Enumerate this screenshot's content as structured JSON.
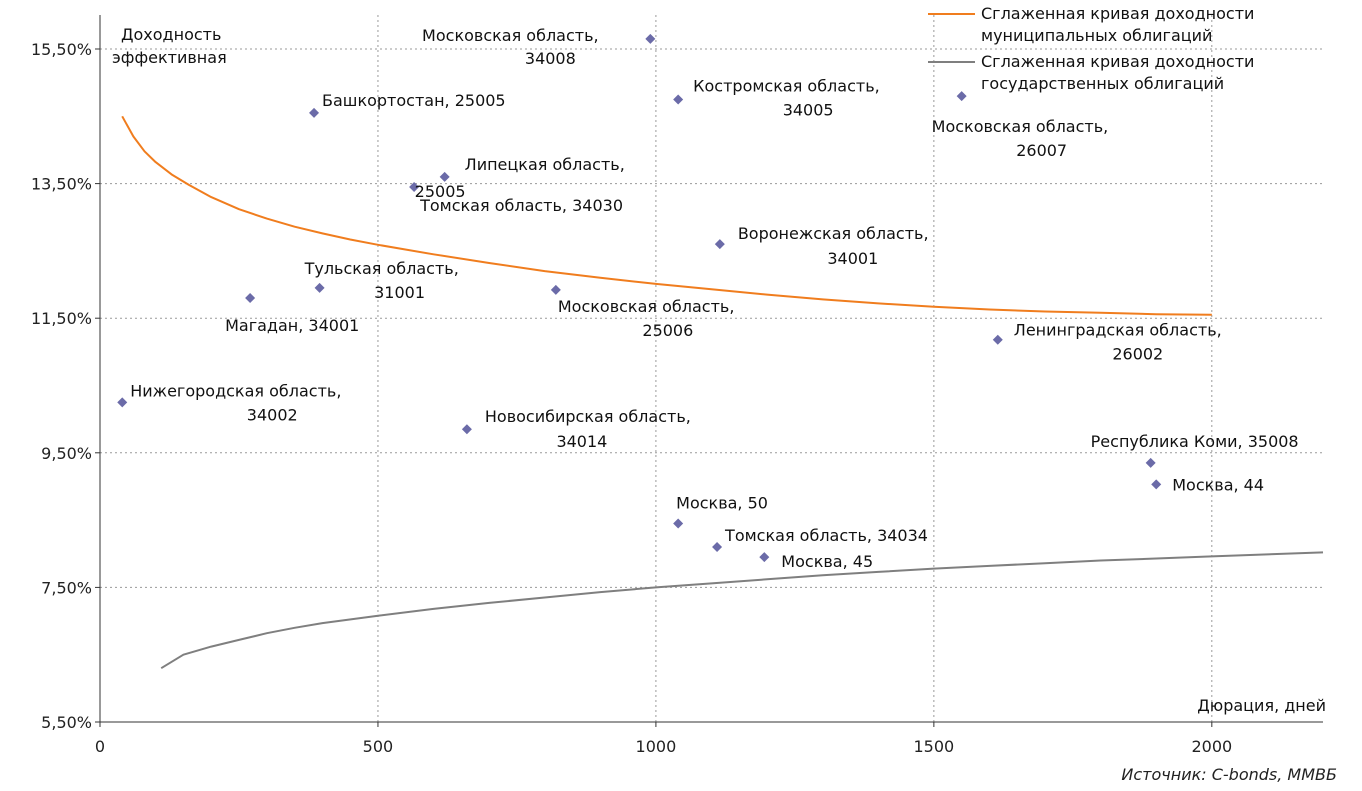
{
  "chart_data": {
    "type": "scatter",
    "ylabel_lines": [
      "Доходность",
      "эффективная"
    ],
    "xlabel": "Дюрация, дней",
    "source": "Источник: C-bonds, ММВБ",
    "xlim": [
      0,
      2200
    ],
    "ylim": [
      5.5,
      16.0
    ],
    "x_ticks": [
      0,
      500,
      1000,
      1500,
      2000
    ],
    "x_tick_labels": [
      "0",
      "500",
      "1000",
      "1500",
      "2000"
    ],
    "y_ticks": [
      5.5,
      7.5,
      9.5,
      11.5,
      13.5,
      15.5
    ],
    "y_tick_labels": [
      "5,50%",
      "7,50%",
      "9,50%",
      "11,50%",
      "13,50%",
      "15,50%"
    ],
    "grid": true,
    "legend_position": "top-right",
    "series": [
      {
        "name_lines": [
          "Сглаженная кривая доходности",
          "муниципальных облигаций"
        ],
        "kind": "line",
        "color": "#f07d1e",
        "x": [
          40,
          60,
          80,
          100,
          130,
          160,
          200,
          250,
          300,
          350,
          400,
          450,
          500,
          600,
          700,
          800,
          900,
          1000,
          1100,
          1200,
          1300,
          1400,
          1500,
          1600,
          1700,
          1800,
          1900,
          2000
        ],
        "y": [
          14.5,
          14.2,
          13.98,
          13.82,
          13.63,
          13.48,
          13.3,
          13.12,
          12.98,
          12.86,
          12.76,
          12.67,
          12.59,
          12.45,
          12.32,
          12.2,
          12.1,
          12.01,
          11.93,
          11.85,
          11.78,
          11.72,
          11.67,
          11.63,
          11.6,
          11.58,
          11.56,
          11.55
        ]
      },
      {
        "name_lines": [
          "Сглаженная кривая доходности",
          "государственных облигаций"
        ],
        "kind": "line",
        "color": "#7f7f7f",
        "x": [
          110,
          150,
          200,
          250,
          300,
          350,
          400,
          500,
          600,
          700,
          800,
          900,
          1000,
          1100,
          1200,
          1300,
          1400,
          1500,
          1600,
          1700,
          1800,
          1900,
          2000,
          2100,
          2200
        ],
        "y": [
          6.3,
          6.5,
          6.62,
          6.72,
          6.82,
          6.9,
          6.97,
          7.08,
          7.18,
          7.27,
          7.35,
          7.43,
          7.5,
          7.56,
          7.62,
          7.68,
          7.73,
          7.78,
          7.82,
          7.86,
          7.9,
          7.93,
          7.96,
          7.99,
          8.02
        ]
      },
      {
        "kind": "scatter",
        "color": "#6b6ba8",
        "points": [
          {
            "x": 40,
            "y": 10.25,
            "label": [
              "Нижегородская область,",
              "34002"
            ]
          },
          {
            "x": 270,
            "y": 11.8,
            "label": [
              "Магадан, 34001"
            ]
          },
          {
            "x": 395,
            "y": 11.95,
            "label": [
              "Тульская область,",
              "31001"
            ]
          },
          {
            "x": 385,
            "y": 14.55,
            "label": [
              "Башкортостан, 25005"
            ]
          },
          {
            "x": 565,
            "y": 13.45,
            "label": [
              "Томская область, 34030"
            ]
          },
          {
            "x": 620,
            "y": 13.6,
            "label": [
              "Липецкая область,",
              "25005"
            ]
          },
          {
            "x": 660,
            "y": 9.85,
            "label": [
              "Новосибирская область,",
              "34014"
            ]
          },
          {
            "x": 820,
            "y": 11.92,
            "label": [
              "Московская область,",
              "25006"
            ]
          },
          {
            "x": 990,
            "y": 15.65,
            "label": [
              "Московская область,",
              "34008"
            ]
          },
          {
            "x": 1040,
            "y": 14.75,
            "label": [
              "Костромская область,",
              "34005"
            ]
          },
          {
            "x": 1040,
            "y": 8.45,
            "label": [
              "Москва, 50"
            ]
          },
          {
            "x": 1110,
            "y": 8.1,
            "label": [
              "Томская область, 34034"
            ]
          },
          {
            "x": 1115,
            "y": 12.6,
            "label": [
              "Воронежская область,",
              "34001"
            ]
          },
          {
            "x": 1195,
            "y": 7.95,
            "label": [
              "Москва, 45"
            ]
          },
          {
            "x": 1550,
            "y": 14.8,
            "label": [
              "Московская область,",
              "26007"
            ]
          },
          {
            "x": 1615,
            "y": 11.18,
            "label": [
              "Ленинградская область,",
              "26002"
            ]
          },
          {
            "x": 1890,
            "y": 9.35,
            "label": [
              "Республика Коми, 35008"
            ]
          },
          {
            "x": 1900,
            "y": 9.03,
            "label": [
              "Москва, 44"
            ]
          }
        ]
      }
    ]
  }
}
